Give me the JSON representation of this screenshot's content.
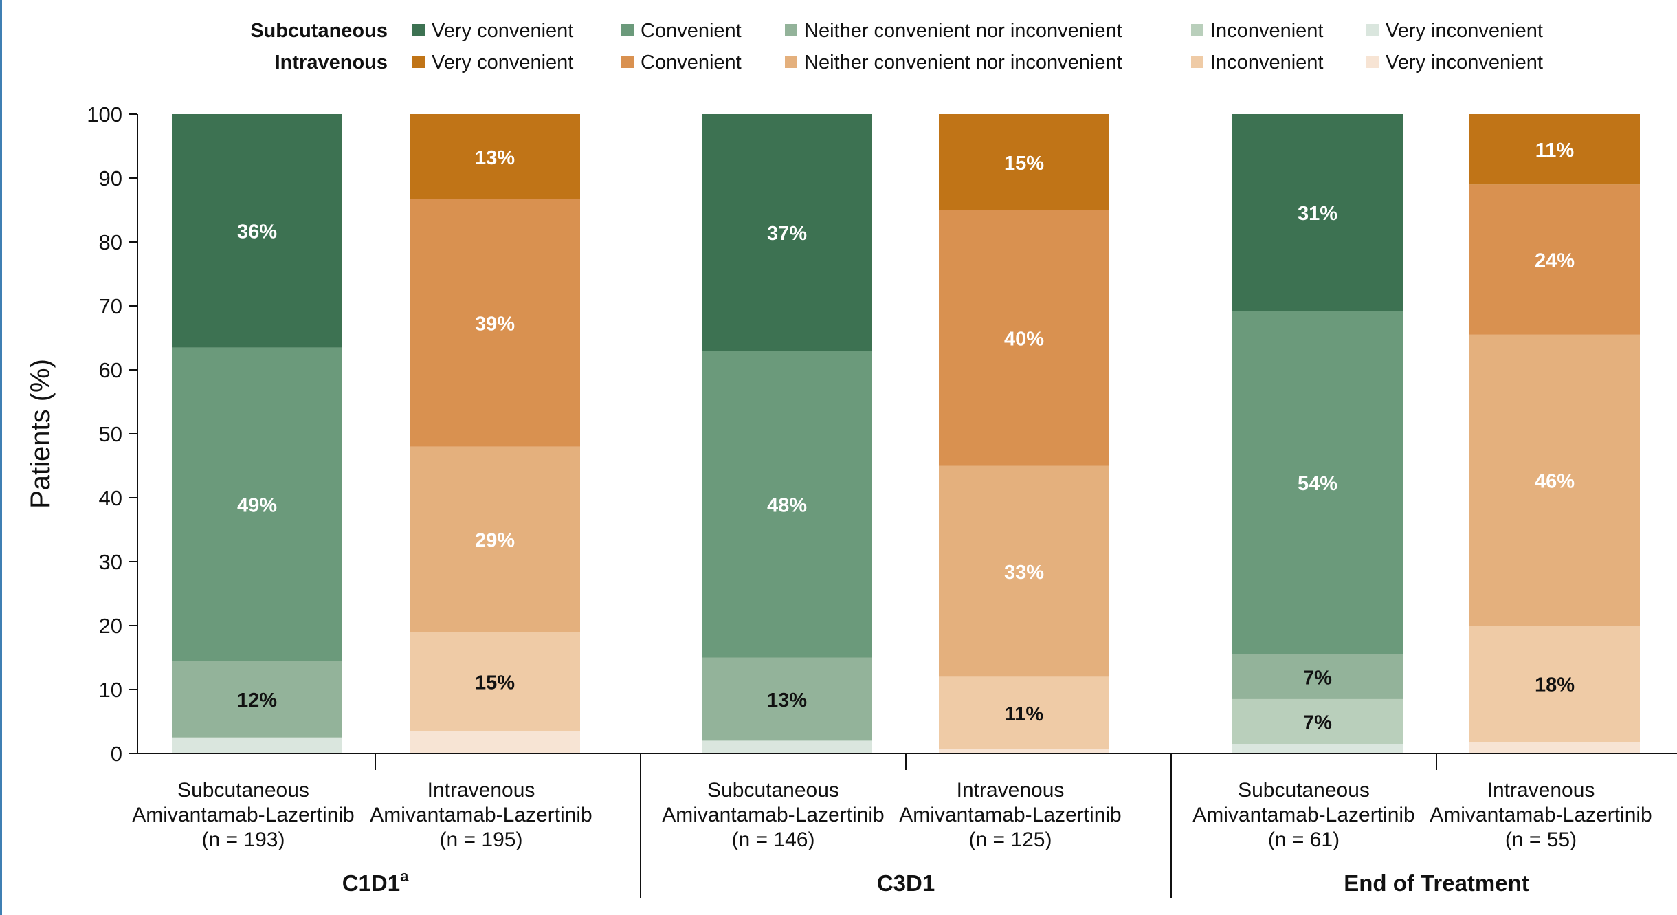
{
  "chart_data": {
    "type": "bar",
    "stacked": true,
    "ylabel": "Patients (%)",
    "ylim": [
      0,
      100
    ],
    "yticks": [
      "0",
      "10",
      "20",
      "30",
      "40",
      "50",
      "60",
      "70",
      "80",
      "90",
      "100"
    ],
    "legend": {
      "placement": "top",
      "rows": [
        {
          "name": "Subcutaneous",
          "entries": [
            {
              "label": "Very convenient",
              "color": "#3d7252"
            },
            {
              "label": "Convenient",
              "color": "#6b9a7b"
            },
            {
              "label": "Neither convenient nor inconvenient",
              "color": "#93b39a"
            },
            {
              "label": "Inconvenient",
              "color": "#b9cfbb"
            },
            {
              "label": "Very inconvenient",
              "color": "#dae6de"
            }
          ]
        },
        {
          "name": "Intravenous",
          "entries": [
            {
              "label": "Very convenient",
              "color": "#c07417"
            },
            {
              "label": "Convenient",
              "color": "#d99150"
            },
            {
              "label": "Neither convenient nor inconvenient",
              "color": "#e4b07d"
            },
            {
              "label": "Inconvenient",
              "color": "#efcba6"
            },
            {
              "label": "Very inconvenient",
              "color": "#f7e4d4"
            }
          ]
        }
      ]
    },
    "groups": [
      {
        "label": "C1D1",
        "sup": "a",
        "bars": [
          {
            "route": "Subcutaneous",
            "line1": "Subcutaneous",
            "line2": "Amivantamab-Lazertinib",
            "line3": "(n = 193)",
            "values": [
              2.5,
              0,
              12,
              49,
              36.5
            ],
            "labels": [
              "",
              "",
              "12%",
              "49%",
              "36%"
            ]
          },
          {
            "route": "Intravenous",
            "line1": "Intravenous",
            "line2": "Amivantamab-Lazertinib",
            "line3": "(n = 195)",
            "values": [
              3.5,
              15.5,
              29,
              38.7,
              13.3
            ],
            "labels": [
              "",
              "15%",
              "29%",
              "39%",
              "13%"
            ]
          }
        ]
      },
      {
        "label": "C3D1",
        "sup": "",
        "bars": [
          {
            "route": "Subcutaneous",
            "line1": "Subcutaneous",
            "line2": "Amivantamab-Lazertinib",
            "line3": "(n = 146)",
            "values": [
              2,
              0,
              13,
              48,
              37
            ],
            "labels": [
              "",
              "",
              "13%",
              "48%",
              "37%"
            ]
          },
          {
            "route": "Intravenous",
            "line1": "Intravenous",
            "line2": "Amivantamab-Lazertinib",
            "line3": "(n = 125)",
            "values": [
              0.7,
              11.3,
              33,
              40,
              15
            ],
            "labels": [
              "",
              "11%",
              "33%",
              "40%",
              "15%"
            ]
          }
        ]
      },
      {
        "label": "End of Treatment",
        "sup": "",
        "bars": [
          {
            "route": "Subcutaneous",
            "line1": "Subcutaneous",
            "line2": "Amivantamab-Lazertinib",
            "line3": "(n = 61)",
            "values": [
              1.5,
              7,
              7,
              53.7,
              30.8
            ],
            "labels": [
              "",
              "7%",
              "7%",
              "54%",
              "31%"
            ]
          },
          {
            "route": "Intravenous",
            "line1": "Intravenous",
            "line2": "Amivantamab-Lazertinib",
            "line3": "(n = 55)",
            "values": [
              1.8,
              18.2,
              45.5,
              23.5,
              11
            ],
            "labels": [
              "",
              "18%",
              "46%",
              "24%",
              "11%"
            ]
          }
        ]
      }
    ],
    "segment_order": [
      "Very inconvenient",
      "Inconvenient",
      "Neither convenient nor inconvenient",
      "Convenient",
      "Very convenient"
    ]
  }
}
